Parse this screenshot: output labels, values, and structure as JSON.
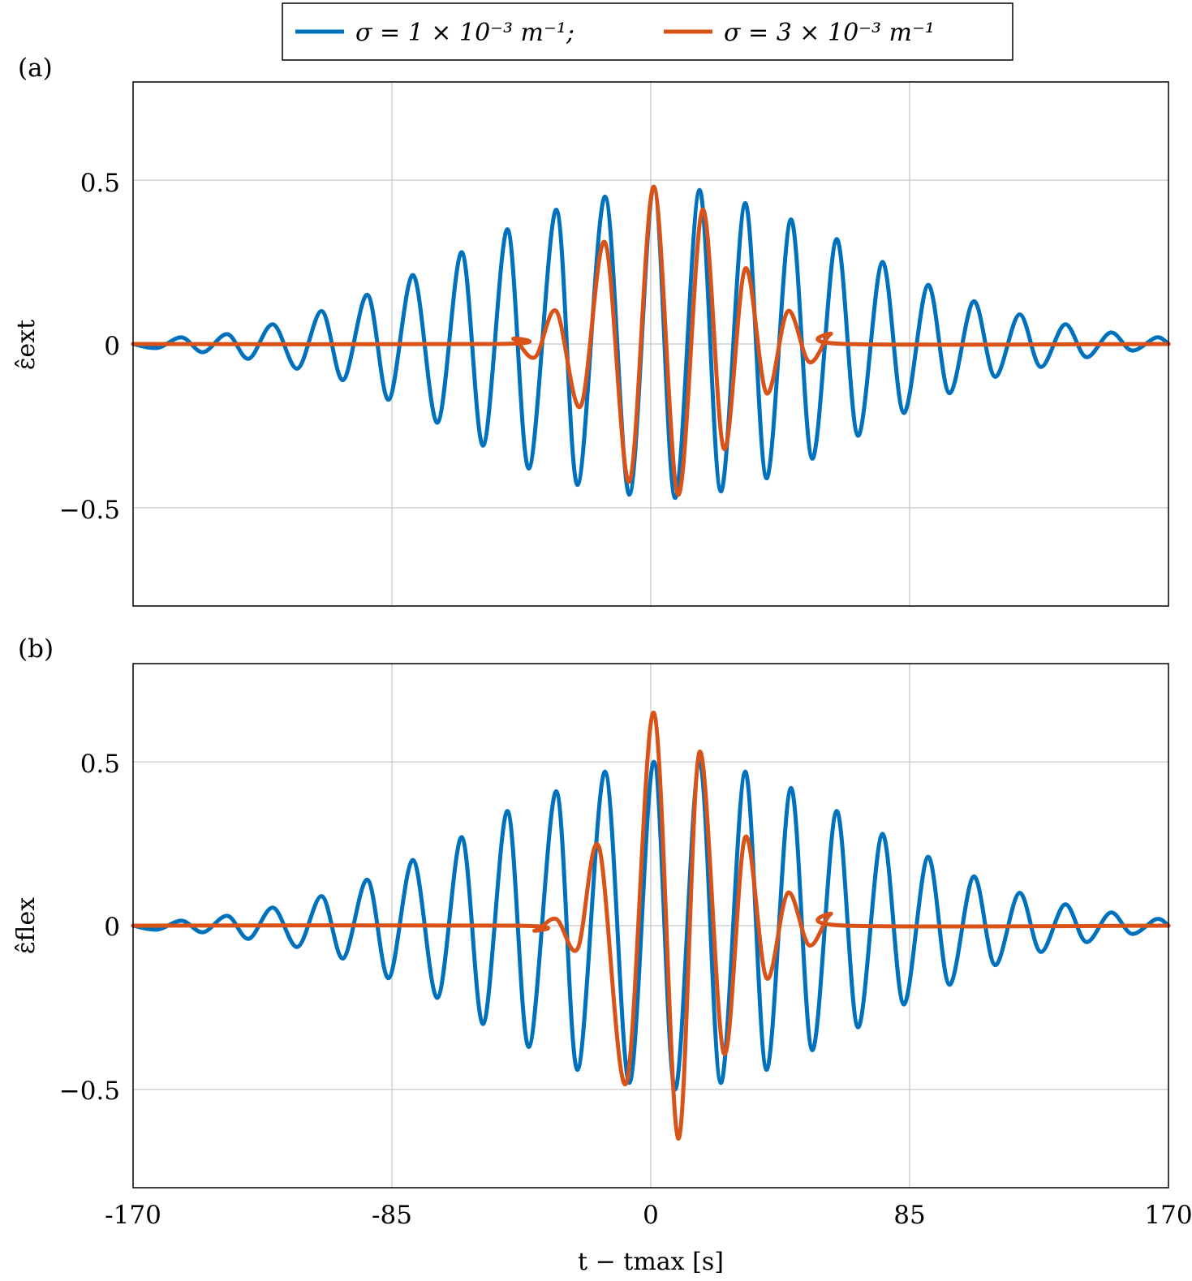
{
  "colors": {
    "series_1": "#0072BD",
    "series_2": "#D95319",
    "grid": "#c8c8c8",
    "axes": "#000000"
  },
  "legend": {
    "placement": "top-center",
    "entries": [
      "σ = 1 × 10⁻³ m⁻¹;",
      "σ = 3 × 10⁻³ m⁻¹"
    ]
  },
  "chart_data": [
    {
      "type": "line",
      "panel_label": "(a)",
      "ylabel": "ε̂ext",
      "xlabel": "",
      "xlim": [
        -170,
        170
      ],
      "ylim": [
        -0.8,
        0.8
      ],
      "x_ticks": [
        -170,
        -85,
        0,
        85,
        170
      ],
      "x_tick_labels": [],
      "y_ticks": [
        -0.5,
        0,
        0.5
      ],
      "y_tick_labels": [
        "−0.5",
        "0",
        "0.5"
      ],
      "grid": true,
      "series": [
        {
          "name": "σ = 1 × 10⁻³ m⁻¹",
          "color": "#0072BD",
          "points": [
            [
              -170,
              0.0
            ],
            [
              -162,
              -0.012
            ],
            [
              -154,
              0.02
            ],
            [
              -147,
              -0.025
            ],
            [
              -139,
              0.03
            ],
            [
              -132,
              -0.045
            ],
            [
              -124,
              0.06
            ],
            [
              -116,
              -0.075
            ],
            [
              -108,
              0.1
            ],
            [
              -101,
              -0.11
            ],
            [
              -93,
              0.15
            ],
            [
              -86,
              -0.17
            ],
            [
              -78,
              0.21
            ],
            [
              -70,
              -0.24
            ],
            [
              -62,
              0.28
            ],
            [
              -55,
              -0.31
            ],
            [
              -47,
              0.35
            ],
            [
              -40,
              -0.38
            ],
            [
              -31,
              0.41
            ],
            [
              -24,
              -0.43
            ],
            [
              -15,
              0.45
            ],
            [
              -7,
              -0.46
            ],
            [
              1,
              0.48
            ],
            [
              8,
              -0.47
            ],
            [
              16,
              0.47
            ],
            [
              23,
              -0.45
            ],
            [
              31,
              0.43
            ],
            [
              38,
              -0.41
            ],
            [
              46,
              0.38
            ],
            [
              53,
              -0.35
            ],
            [
              61,
              0.32
            ],
            [
              68,
              -0.28
            ],
            [
              76,
              0.25
            ],
            [
              83,
              -0.21
            ],
            [
              91,
              0.18
            ],
            [
              98,
              -0.15
            ],
            [
              106,
              0.13
            ],
            [
              113,
              -0.1
            ],
            [
              121,
              0.09
            ],
            [
              128,
              -0.07
            ],
            [
              136,
              0.06
            ],
            [
              143,
              -0.04
            ],
            [
              151,
              0.035
            ],
            [
              158,
              -0.02
            ],
            [
              166,
              0.02
            ],
            [
              170,
              0.0
            ]
          ]
        },
        {
          "name": "σ = 3 × 10⁻³ m⁻¹",
          "color": "#D95319",
          "points": [
            [
              -170,
              0.0
            ],
            [
              -50,
              0.0
            ],
            [
              -45,
              0.015
            ],
            [
              -38,
              -0.04
            ],
            [
              -31,
              0.1
            ],
            [
              -23,
              -0.19
            ],
            [
              -15,
              0.31
            ],
            [
              -7,
              -0.42
            ],
            [
              1,
              0.48
            ],
            [
              9,
              -0.46
            ],
            [
              17,
              0.41
            ],
            [
              24,
              -0.32
            ],
            [
              31,
              0.23
            ],
            [
              38,
              -0.15
            ],
            [
              45,
              0.1
            ],
            [
              52,
              -0.055
            ],
            [
              59,
              0.03
            ],
            [
              64,
              0.0
            ],
            [
              170,
              0.0
            ]
          ]
        }
      ]
    },
    {
      "type": "line",
      "panel_label": "(b)",
      "ylabel": "ε̂flex",
      "xlabel": "t − tmax [s]",
      "xlim": [
        -170,
        170
      ],
      "ylim": [
        -0.8,
        0.8
      ],
      "x_ticks": [
        -170,
        -85,
        0,
        85,
        170
      ],
      "x_tick_labels": [
        "-170",
        "-85",
        "0",
        "85",
        "170"
      ],
      "y_ticks": [
        -0.5,
        0,
        0.5
      ],
      "y_tick_labels": [
        "−0.5",
        "0",
        "0.5"
      ],
      "grid": true,
      "series": [
        {
          "name": "σ = 1 × 10⁻³ m⁻¹",
          "color": "#0072BD",
          "points": [
            [
              -170,
              0.0
            ],
            [
              -162,
              -0.012
            ],
            [
              -154,
              0.015
            ],
            [
              -147,
              -0.02
            ],
            [
              -139,
              0.03
            ],
            [
              -132,
              -0.04
            ],
            [
              -124,
              0.055
            ],
            [
              -116,
              -0.065
            ],
            [
              -108,
              0.09
            ],
            [
              -101,
              -0.1
            ],
            [
              -93,
              0.14
            ],
            [
              -86,
              -0.16
            ],
            [
              -78,
              0.2
            ],
            [
              -70,
              -0.22
            ],
            [
              -62,
              0.27
            ],
            [
              -55,
              -0.3
            ],
            [
              -47,
              0.35
            ],
            [
              -40,
              -0.37
            ],
            [
              -31,
              0.41
            ],
            [
              -24,
              -0.44
            ],
            [
              -15,
              0.47
            ],
            [
              -7,
              -0.48
            ],
            [
              1,
              0.5
            ],
            [
              8,
              -0.5
            ],
            [
              16,
              0.5
            ],
            [
              23,
              -0.48
            ],
            [
              31,
              0.47
            ],
            [
              38,
              -0.44
            ],
            [
              46,
              0.42
            ],
            [
              53,
              -0.38
            ],
            [
              61,
              0.35
            ],
            [
              68,
              -0.31
            ],
            [
              76,
              0.28
            ],
            [
              83,
              -0.24
            ],
            [
              91,
              0.21
            ],
            [
              98,
              -0.18
            ],
            [
              106,
              0.15
            ],
            [
              113,
              -0.12
            ],
            [
              121,
              0.1
            ],
            [
              128,
              -0.08
            ],
            [
              136,
              0.065
            ],
            [
              143,
              -0.05
            ],
            [
              151,
              0.04
            ],
            [
              158,
              -0.025
            ],
            [
              166,
              0.02
            ],
            [
              170,
              0.0
            ]
          ]
        },
        {
          "name": "σ = 3 × 10⁻³ m⁻¹",
          "color": "#D95319",
          "points": [
            [
              -170,
              0.0
            ],
            [
              -45,
              0.0
            ],
            [
              -38,
              -0.015
            ],
            [
              -31,
              0.02
            ],
            [
              -24,
              -0.07
            ],
            [
              -17,
              0.24
            ],
            [
              -8,
              -0.48
            ],
            [
              1,
              0.65
            ],
            [
              9,
              -0.65
            ],
            [
              16,
              0.53
            ],
            [
              24,
              -0.39
            ],
            [
              31,
              0.27
            ],
            [
              38,
              -0.16
            ],
            [
              45,
              0.1
            ],
            [
              52,
              -0.06
            ],
            [
              59,
              0.035
            ],
            [
              64,
              0.0
            ],
            [
              170,
              0.0
            ]
          ]
        }
      ]
    }
  ]
}
